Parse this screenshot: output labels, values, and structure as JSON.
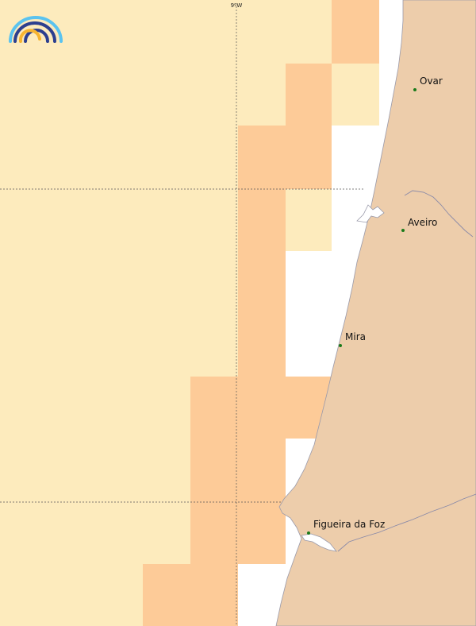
{
  "map": {
    "grid_label": "9ºW",
    "colors": {
      "sea_light": "#fdebbd",
      "sea_orange": "#fdcb98",
      "land": "#edcdab",
      "coast_line": "#9a9aaa",
      "river": "#8a8aa8",
      "grid": "#555555",
      "city_dot": "#1a7a1a"
    },
    "cities": [
      {
        "name": "Ovar"
      },
      {
        "name": "Aveiro"
      },
      {
        "name": "Mira"
      },
      {
        "name": "Figueira da Foz"
      }
    ],
    "logo": {
      "icon": "rainbow-logo-icon",
      "colors": [
        "#5bc3ef",
        "#2c3f8f",
        "#f7b430"
      ]
    }
  }
}
